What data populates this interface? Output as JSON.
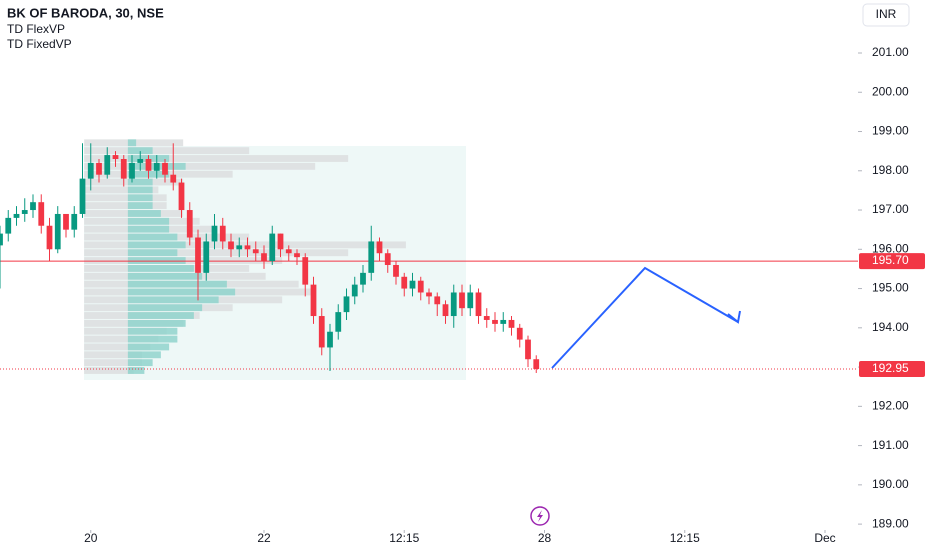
{
  "chart_data": {
    "type": "candlestick",
    "title": "BK OF BARODA, 30, NSE",
    "indicators": [
      "TD FlexVP",
      "TD FixedVP"
    ],
    "currency": "INR",
    "x": [
      0,
      1,
      2,
      3,
      4,
      5,
      6,
      7,
      8,
      9,
      10,
      11,
      12,
      13,
      14,
      15,
      16,
      17,
      18,
      19,
      20,
      21,
      22,
      23,
      24,
      25,
      26,
      27,
      28,
      29,
      30,
      31,
      32,
      33,
      34,
      35,
      36,
      37,
      38,
      39,
      40,
      41,
      42,
      43,
      44,
      45,
      46,
      47,
      48,
      49,
      50,
      51,
      52,
      53,
      54,
      55,
      56,
      57,
      58,
      59,
      60,
      61,
      62,
      63,
      64,
      65
    ],
    "open": [
      196.1,
      196.4,
      196.8,
      196.9,
      197.0,
      197.2,
      196.6,
      196.0,
      196.9,
      196.5,
      196.9,
      197.8,
      198.2,
      197.9,
      198.4,
      198.3,
      197.8,
      198.2,
      198.3,
      198.0,
      198.2,
      197.9,
      197.7,
      197.0,
      196.3,
      195.4,
      196.2,
      196.6,
      196.2,
      196.0,
      196.1,
      196.0,
      195.9,
      195.7,
      196.4,
      196.0,
      195.9,
      195.8,
      195.1,
      194.3,
      193.5,
      193.9,
      194.4,
      194.8,
      195.1,
      195.4,
      196.2,
      195.9,
      195.6,
      195.3,
      195.0,
      195.2,
      194.9,
      194.8,
      194.6,
      194.3,
      194.9,
      194.5,
      194.9,
      194.3,
      194.2,
      194.1,
      194.2,
      194.0,
      193.7,
      193.2
    ],
    "high": [
      196.6,
      197.0,
      197.1,
      197.3,
      197.4,
      197.4,
      196.8,
      197.1,
      196.9,
      197.1,
      198.7,
      198.7,
      198.3,
      198.6,
      198.5,
      198.4,
      198.4,
      198.5,
      198.4,
      198.4,
      198.3,
      198.7,
      197.8,
      197.2,
      196.5,
      196.4,
      196.9,
      196.8,
      196.4,
      196.3,
      196.3,
      196.2,
      196.1,
      196.6,
      196.4,
      196.1,
      196.0,
      195.9,
      195.3,
      194.5,
      194.1,
      194.6,
      195.0,
      195.3,
      195.6,
      196.6,
      196.3,
      196.0,
      195.7,
      195.4,
      195.4,
      195.3,
      195.0,
      194.9,
      194.7,
      195.1,
      195.1,
      195.1,
      195.0,
      194.5,
      194.4,
      194.4,
      194.3,
      194.1,
      193.8,
      193.3
    ],
    "low": [
      195.0,
      196.2,
      196.6,
      196.7,
      196.8,
      196.4,
      195.7,
      195.9,
      196.3,
      196.3,
      196.8,
      197.5,
      197.7,
      197.8,
      198.1,
      197.6,
      197.7,
      198.0,
      197.8,
      197.8,
      197.7,
      197.5,
      196.8,
      196.1,
      194.7,
      195.2,
      196.0,
      196.0,
      195.8,
      195.8,
      195.8,
      195.7,
      195.5,
      195.6,
      195.8,
      195.7,
      195.6,
      194.8,
      194.1,
      193.3,
      192.9,
      193.7,
      194.2,
      194.6,
      194.9,
      195.2,
      195.7,
      195.4,
      195.1,
      194.8,
      194.8,
      194.7,
      194.6,
      194.3,
      194.1,
      194.0,
      194.3,
      194.3,
      194.1,
      194.0,
      193.9,
      193.9,
      193.8,
      193.5,
      193.0,
      192.85
    ],
    "close": [
      196.4,
      196.8,
      196.9,
      197.0,
      197.2,
      196.6,
      196.0,
      196.9,
      196.5,
      196.9,
      197.8,
      198.2,
      197.9,
      198.4,
      198.3,
      197.8,
      198.2,
      198.3,
      198.0,
      198.2,
      197.9,
      197.7,
      197.0,
      196.3,
      195.4,
      196.2,
      196.6,
      196.2,
      196.0,
      196.1,
      196.0,
      195.9,
      195.7,
      196.4,
      196.0,
      195.9,
      195.8,
      195.1,
      194.3,
      193.5,
      193.9,
      194.4,
      194.8,
      195.1,
      195.4,
      196.2,
      195.9,
      195.6,
      195.3,
      195.0,
      195.2,
      194.9,
      194.8,
      194.6,
      194.3,
      194.9,
      194.5,
      194.9,
      194.3,
      194.2,
      194.1,
      194.2,
      194.0,
      193.7,
      193.2,
      192.95
    ],
    "up_color": "#089981",
    "down_color": "#f23645",
    "xlim": [
      0,
      104
    ],
    "xticks": [
      {
        "value": 11,
        "label": "20"
      },
      {
        "value": 32,
        "label": "22"
      },
      {
        "value": 49,
        "label": "12:15"
      },
      {
        "value": 66,
        "label": "28"
      },
      {
        "value": 83,
        "label": "12:15"
      },
      {
        "value": 100,
        "label": "Dec"
      }
    ],
    "ylim": [
      188.85,
      202.35
    ],
    "yticks": [
      {
        "value": 189,
        "label": "189.00"
      },
      {
        "value": 190,
        "label": "190.00"
      },
      {
        "value": 191,
        "label": "191.00"
      },
      {
        "value": 192,
        "label": "192.00"
      },
      {
        "value": 193,
        "label": "193.00"
      },
      {
        "value": 194,
        "label": "194.00"
      },
      {
        "value": 195,
        "label": "195.00"
      },
      {
        "value": 196,
        "label": "196.00"
      },
      {
        "value": 197,
        "label": "197.00"
      },
      {
        "value": 198,
        "label": "198.00"
      },
      {
        "value": 199,
        "label": "199.00"
      },
      {
        "value": 200,
        "label": "200.00"
      },
      {
        "value": 201,
        "label": "201.00"
      }
    ],
    "price_lines": [
      {
        "value": 195.7,
        "label": "195.70",
        "style": "solid",
        "color": "#f23645"
      },
      {
        "value": 192.95,
        "label": "192.95",
        "style": "dotted",
        "color": "#f23645"
      }
    ],
    "volume_profile": {
      "levels": [
        192.8,
        193.0,
        193.2,
        193.4,
        193.6,
        193.8,
        194.0,
        194.2,
        194.4,
        194.6,
        194.8,
        195.0,
        195.2,
        195.4,
        195.6,
        195.8,
        196.0,
        196.2,
        196.4,
        196.6,
        196.8,
        197.0,
        197.2,
        197.4,
        197.6,
        197.8,
        198.0,
        198.2,
        198.4,
        198.6
      ],
      "row_height": 0.2,
      "series": [
        {
          "start": 10.2,
          "color": "#dcdedf",
          "volumes": [
            6,
            7,
            7,
            8,
            9,
            10,
            12,
            14,
            18,
            24,
            28,
            26,
            22,
            20,
            24,
            32,
            39,
            20,
            16,
            14,
            12,
            10,
            10,
            9,
            12,
            18,
            28,
            32,
            20,
            12
          ]
        },
        {
          "start": 15.5,
          "color": "#90d4cc",
          "volumes": [
            2,
            3,
            4,
            5,
            6,
            6,
            7,
            8,
            9,
            11,
            13,
            12,
            9,
            8,
            7,
            6,
            7,
            6,
            5,
            5,
            4,
            3,
            3,
            3,
            3,
            5,
            7,
            5,
            3,
            1
          ]
        }
      ]
    }
  }
}
